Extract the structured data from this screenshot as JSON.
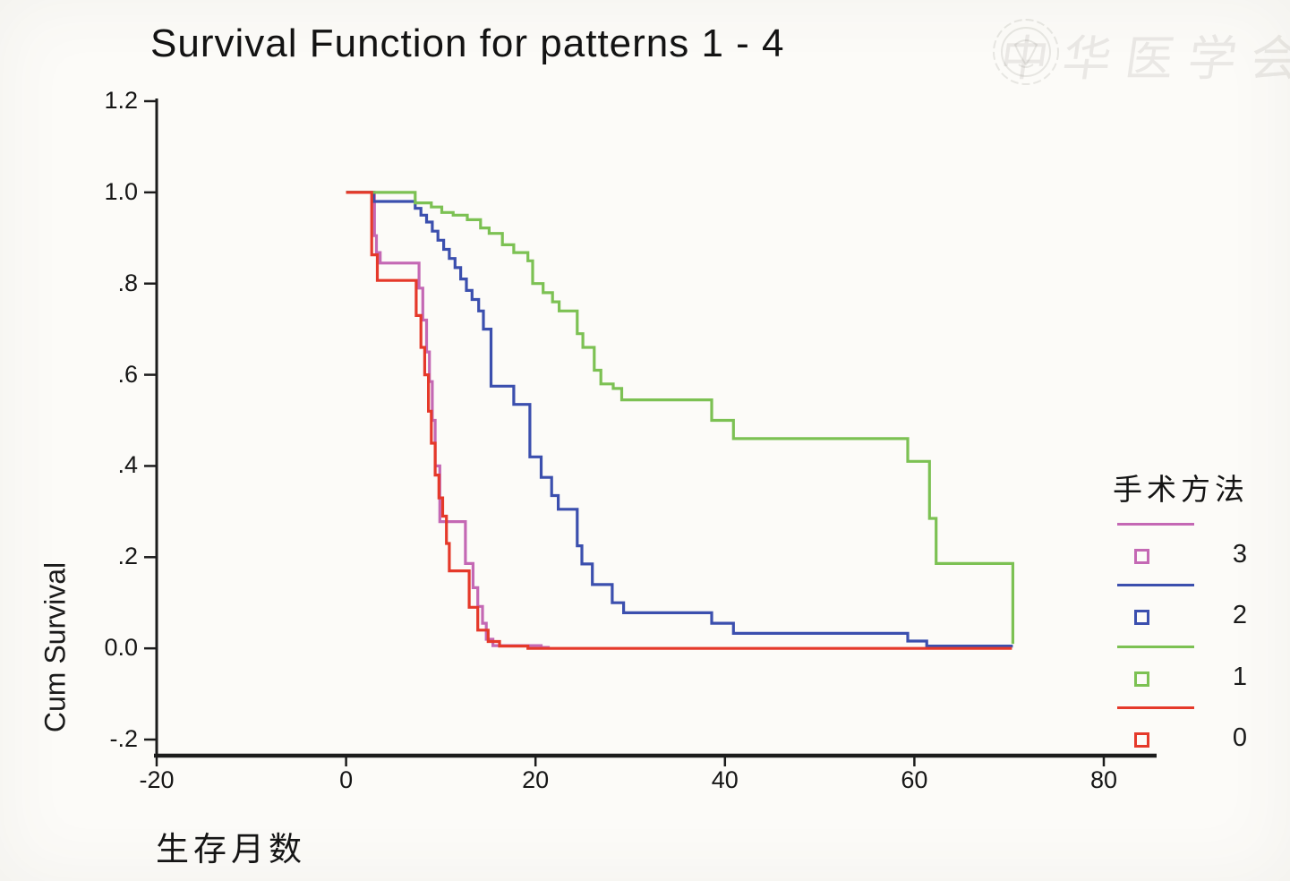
{
  "watermark": {
    "text": "中华医学会",
    "emblem": "chinese-medical-association-seal"
  },
  "chart_data": {
    "type": "line",
    "subtype": "kaplan-meier-step-survival",
    "title": "Survival Function for patterns 1 - 4",
    "xlabel": "生存月数",
    "ylabel": "Cum Survival",
    "xlim": [
      -20,
      80
    ],
    "ylim": [
      -0.2,
      1.2
    ],
    "grid": false,
    "x_ticks": [
      {
        "v": -20,
        "label": "-20"
      },
      {
        "v": 0,
        "label": "0"
      },
      {
        "v": 20,
        "label": "20"
      },
      {
        "v": 40,
        "label": "40"
      },
      {
        "v": 60,
        "label": "60"
      },
      {
        "v": 80,
        "label": "80"
      }
    ],
    "y_ticks": [
      {
        "v": 1.2,
        "label": "1.2"
      },
      {
        "v": 1.0,
        "label": "1.0"
      },
      {
        "v": 0.8,
        "label": ".8"
      },
      {
        "v": 0.6,
        "label": ".6"
      },
      {
        "v": 0.4,
        "label": ".4"
      },
      {
        "v": 0.2,
        "label": ".2"
      },
      {
        "v": 0.0,
        "label": "0.0"
      },
      {
        "v": -0.2,
        "label": "-.2"
      }
    ],
    "legend": {
      "title": "手术方法",
      "position": "right",
      "items": [
        {
          "label": "3",
          "color": "#c468b4",
          "marker": "open-square"
        },
        {
          "label": "2",
          "color": "#3b4fae",
          "marker": "open-square"
        },
        {
          "label": "1",
          "color": "#7cc153",
          "marker": "open-square"
        },
        {
          "label": "0",
          "color": "#e5392a",
          "marker": "open-square"
        }
      ]
    },
    "series": [
      {
        "name": "3",
        "color": "#c468b4",
        "points": [
          [
            0,
            1.0
          ],
          [
            3.0,
            0.905
          ],
          [
            3.2,
            0.868
          ],
          [
            3.6,
            0.845
          ],
          [
            7.7,
            0.79
          ],
          [
            8.1,
            0.72
          ],
          [
            8.5,
            0.65
          ],
          [
            8.8,
            0.585
          ],
          [
            9.1,
            0.5
          ],
          [
            9.4,
            0.4
          ],
          [
            9.9,
            0.278
          ],
          [
            12.6,
            0.186
          ],
          [
            13.4,
            0.133
          ],
          [
            13.9,
            0.092
          ],
          [
            14.4,
            0.055
          ],
          [
            14.8,
            0.02
          ],
          [
            15.5,
            0.006
          ],
          [
            20.6,
            0.002
          ],
          [
            21.5,
            0.002
          ]
        ]
      },
      {
        "name": "2",
        "color": "#3b4fae",
        "points": [
          [
            0,
            1.0
          ],
          [
            2.9,
            0.98
          ],
          [
            7.3,
            0.965
          ],
          [
            7.9,
            0.95
          ],
          [
            8.5,
            0.935
          ],
          [
            9.1,
            0.915
          ],
          [
            9.7,
            0.895
          ],
          [
            10.3,
            0.875
          ],
          [
            10.9,
            0.855
          ],
          [
            11.5,
            0.835
          ],
          [
            12.1,
            0.81
          ],
          [
            12.7,
            0.785
          ],
          [
            13.3,
            0.765
          ],
          [
            14.0,
            0.74
          ],
          [
            14.5,
            0.7
          ],
          [
            15.3,
            0.575
          ],
          [
            17.7,
            0.535
          ],
          [
            19.4,
            0.42
          ],
          [
            20.6,
            0.375
          ],
          [
            21.7,
            0.335
          ],
          [
            22.4,
            0.305
          ],
          [
            24.4,
            0.225
          ],
          [
            24.9,
            0.185
          ],
          [
            26.0,
            0.14
          ],
          [
            28.1,
            0.1
          ],
          [
            29.3,
            0.078
          ],
          [
            38.6,
            0.055
          ],
          [
            40.9,
            0.033
          ],
          [
            59.3,
            0.016
          ],
          [
            61.3,
            0.005
          ],
          [
            70.4,
            0.005
          ]
        ]
      },
      {
        "name": "1",
        "color": "#7cc153",
        "points": [
          [
            0,
            1.0
          ],
          [
            7.3,
            0.977
          ],
          [
            9.0,
            0.968
          ],
          [
            10.1,
            0.956
          ],
          [
            11.3,
            0.95
          ],
          [
            12.8,
            0.94
          ],
          [
            14.2,
            0.922
          ],
          [
            15.1,
            0.91
          ],
          [
            16.5,
            0.885
          ],
          [
            17.7,
            0.868
          ],
          [
            19.2,
            0.85
          ],
          [
            19.7,
            0.8
          ],
          [
            20.8,
            0.78
          ],
          [
            21.8,
            0.76
          ],
          [
            22.5,
            0.74
          ],
          [
            24.4,
            0.69
          ],
          [
            25.0,
            0.66
          ],
          [
            26.2,
            0.61
          ],
          [
            26.9,
            0.58
          ],
          [
            28.2,
            0.57
          ],
          [
            29.1,
            0.545
          ],
          [
            38.6,
            0.5
          ],
          [
            40.9,
            0.46
          ],
          [
            59.3,
            0.41
          ],
          [
            61.6,
            0.285
          ],
          [
            62.3,
            0.186
          ],
          [
            70.4,
            0.186
          ],
          [
            70.4,
            0.01
          ]
        ]
      },
      {
        "name": "0",
        "color": "#e5392a",
        "points": [
          [
            0,
            1.0
          ],
          [
            2.7,
            0.863
          ],
          [
            3.3,
            0.807
          ],
          [
            7.4,
            0.73
          ],
          [
            7.9,
            0.66
          ],
          [
            8.3,
            0.6
          ],
          [
            8.7,
            0.52
          ],
          [
            9.0,
            0.45
          ],
          [
            9.4,
            0.38
          ],
          [
            9.8,
            0.33
          ],
          [
            10.2,
            0.29
          ],
          [
            10.6,
            0.23
          ],
          [
            10.9,
            0.17
          ],
          [
            13.0,
            0.09
          ],
          [
            13.9,
            0.04
          ],
          [
            15.0,
            0.015
          ],
          [
            16.2,
            0.005
          ],
          [
            19.2,
            0.0
          ],
          [
            70.3,
            0.0
          ]
        ]
      }
    ]
  }
}
